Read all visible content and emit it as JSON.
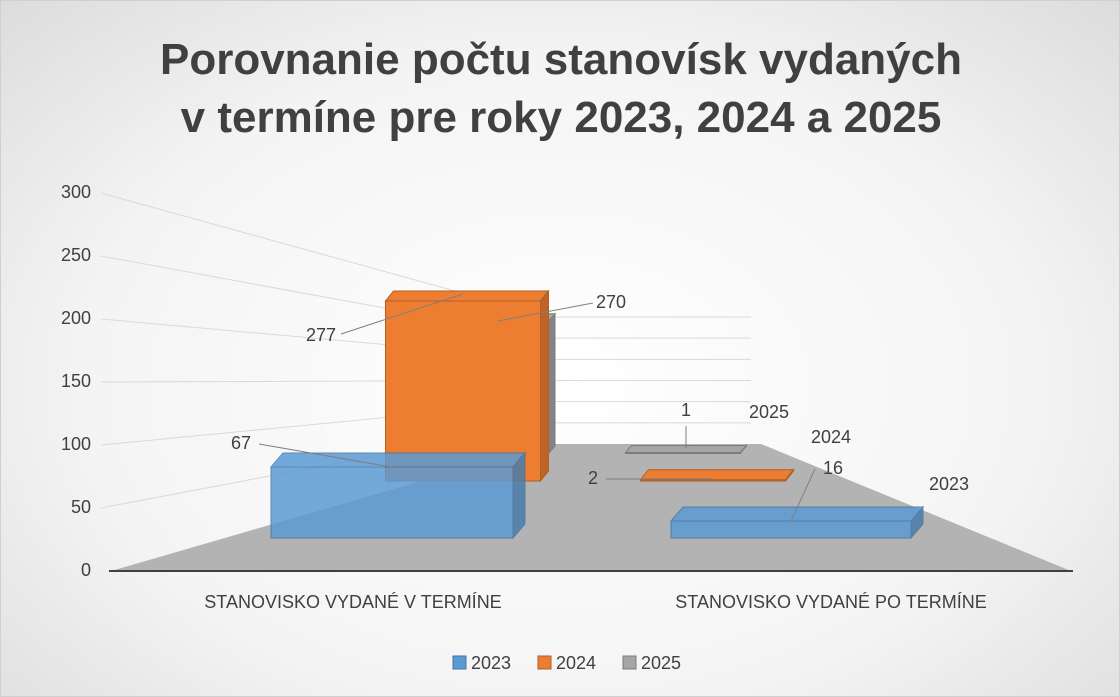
{
  "chart_data": {
    "type": "bar3d",
    "title": "Porovnanie počtu stanovísk vydaných v termíne pre roky 2023, 2024 a 2025",
    "categories": [
      "STANOVISKO VYDANÉ V TERMÍNE",
      "STANOVISKO VYDANÉ PO TERMÍNE"
    ],
    "series": [
      {
        "name": "2023",
        "color": "#5b9bd5",
        "values": [
          67,
          16
        ]
      },
      {
        "name": "2024",
        "color": "#ed7d31",
        "values": [
          277,
          2
        ]
      },
      {
        "name": "2025",
        "color": "#a5a5a5",
        "values": [
          270,
          1
        ]
      }
    ],
    "ylim": [
      0,
      300
    ],
    "yticks": [
      0,
      50,
      100,
      150,
      200,
      250,
      300
    ],
    "grid": true,
    "legend": "bottom"
  }
}
